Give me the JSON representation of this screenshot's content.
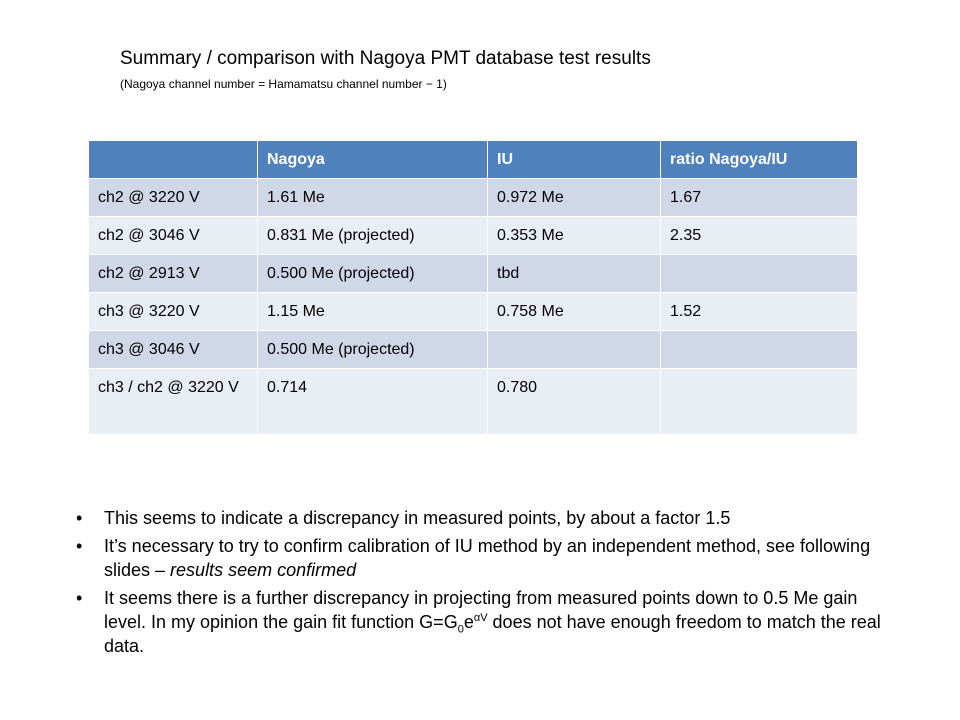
{
  "title": "Summary / comparison with Nagoya PMT database test results",
  "subtitle": "(Nagoya channel number = Hamamatsu channel number − 1)",
  "table": {
    "headers": [
      "",
      "Nagoya",
      "IU",
      "ratio Nagoya/IU"
    ],
    "rows": [
      [
        "ch2 @ 3220 V",
        "1.61 Me",
        "0.972 Me",
        "1.67"
      ],
      [
        "ch2 @ 3046 V",
        "0.831 Me (projected)",
        "0.353 Me",
        "2.35"
      ],
      [
        "ch2 @ 2913 V",
        "0.500 Me (projected)",
        "tbd",
        ""
      ],
      [
        "ch3 @ 3220 V",
        "1.15 Me",
        "0.758 Me",
        "1.52"
      ],
      [
        "ch3 @ 3046 V",
        "0.500 Me (projected)",
        "",
        ""
      ],
      [
        "ch3 / ch2 @ 3220 V",
        "0.714",
        "0.780",
        ""
      ]
    ]
  },
  "bullets": {
    "b1": "This seems to indicate a discrepancy in measured points, by about a factor 1.5",
    "b2_main": "It’s necessary to try to confirm calibration of IU method by an independent method, see following slides – ",
    "b2_italic": "results seem confirmed",
    "b3_pre": "It seems there is a further discrepancy in projecting from measured points down to 0.5 Me gain level. In my opinion the gain fit function G=G",
    "b3_sub": "0",
    "b3_e": "e",
    "b3_sup": "αV",
    "b3_post": " does not have enough freedom to match the real data."
  }
}
